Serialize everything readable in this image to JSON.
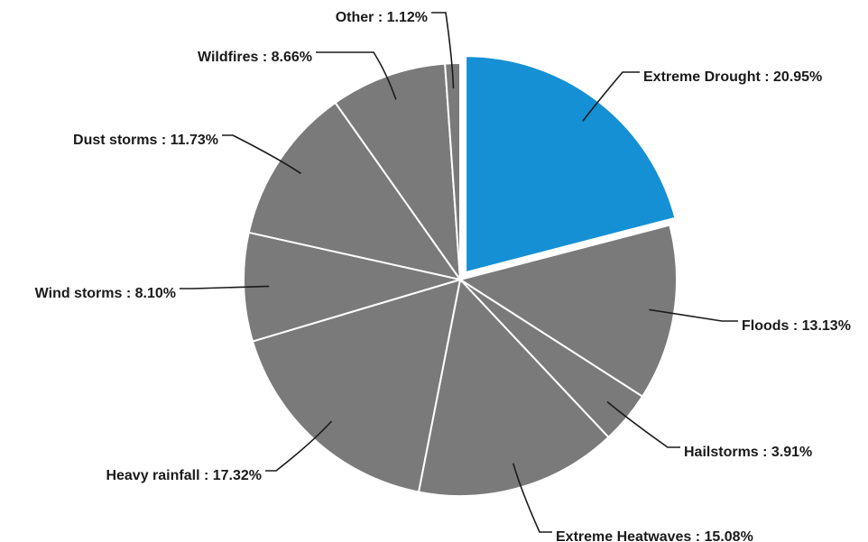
{
  "chart_data": {
    "type": "pie",
    "title": "",
    "start_angle_deg": 0,
    "direction": "clockwise",
    "exploded_slice_index": 0,
    "colors": {
      "highlight": "#1590d4",
      "default": "#7a7a7a",
      "separator": "#ffffff",
      "text": "#1a1a1a"
    },
    "slices": [
      {
        "name": "Extreme Drought",
        "value": 20.95,
        "label": "Extreme Drought : 20.95%"
      },
      {
        "name": "Floods",
        "value": 13.13,
        "label": "Floods : 13.13%"
      },
      {
        "name": "Hailstorms",
        "value": 3.91,
        "label": "Hailstorms : 3.91%"
      },
      {
        "name": "Extreme Heatwaves",
        "value": 15.08,
        "label": "Extreme Heatwaves : 15.08%"
      },
      {
        "name": "Heavy rainfall",
        "value": 17.32,
        "label": "Heavy rainfall : 17.32%"
      },
      {
        "name": "Wind storms",
        "value": 8.1,
        "label": "Wind storms : 8.10%"
      },
      {
        "name": "Dust storms",
        "value": 11.73,
        "label": "Dust storms : 11.73%"
      },
      {
        "name": "Wildfires",
        "value": 8.66,
        "label": "Wildfires : 8.66%"
      },
      {
        "name": "Other",
        "value": 1.12,
        "label": "Other : 1.12%"
      }
    ]
  }
}
